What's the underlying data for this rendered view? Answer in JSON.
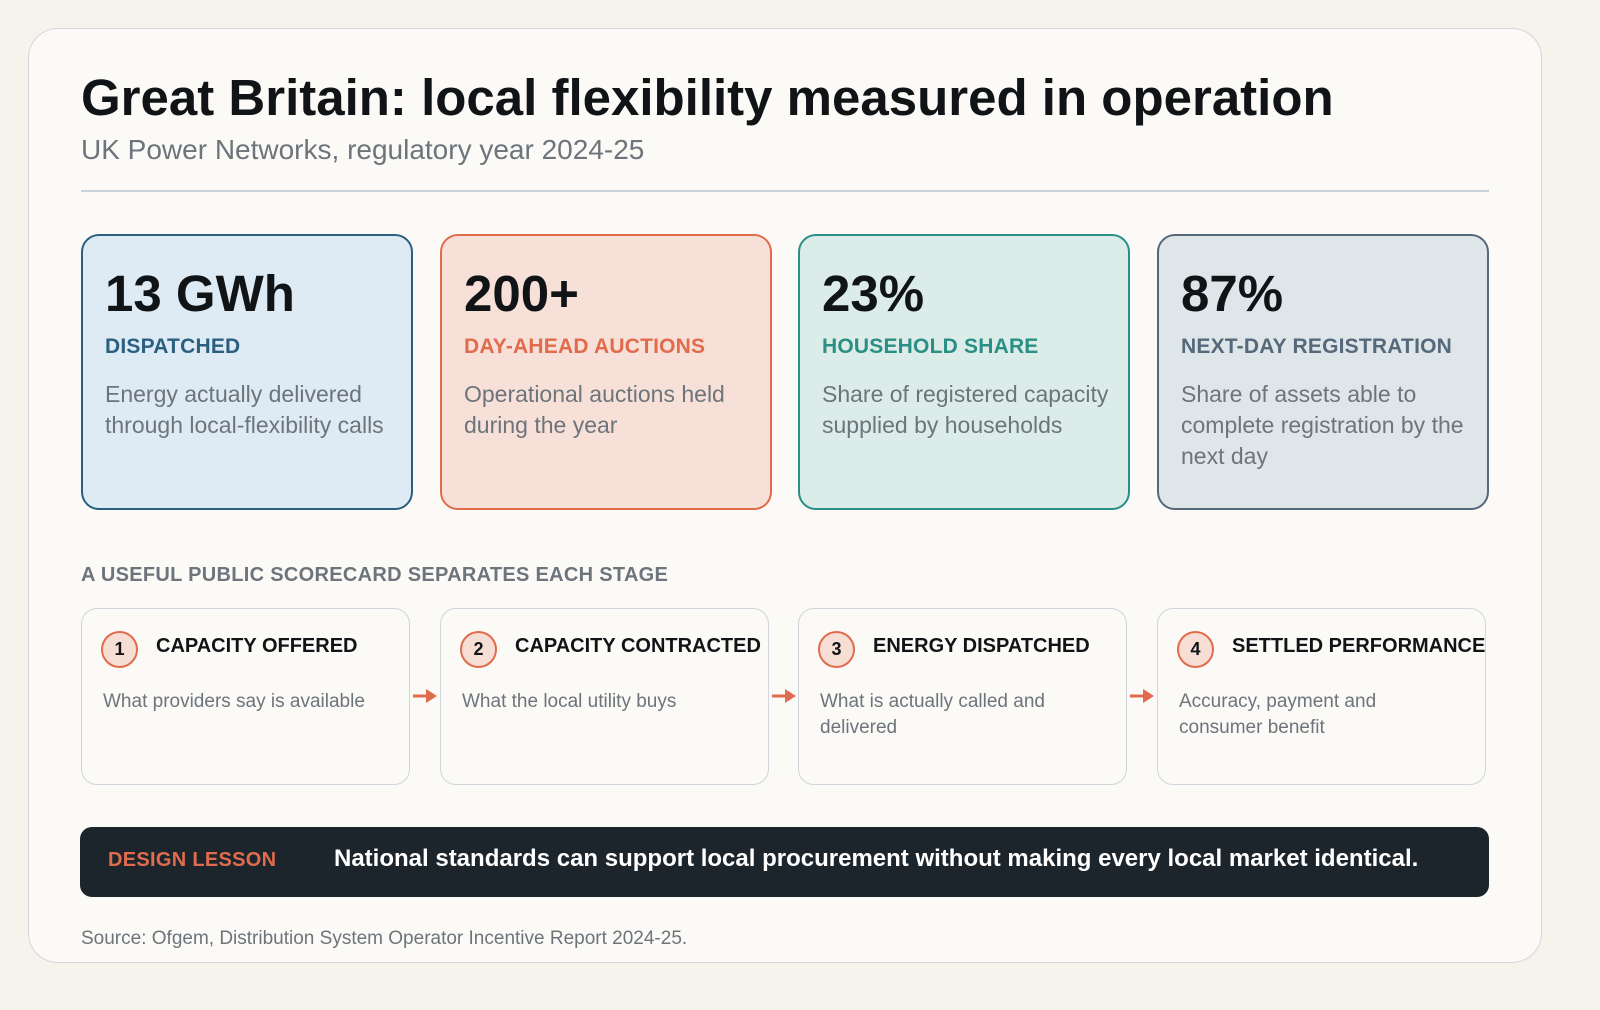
{
  "header": {
    "title": "Great Britain: local flexibility measured in operation",
    "subtitle": "UK Power Networks, regulatory year 2024-25"
  },
  "kpis": [
    {
      "value": "13 GWh",
      "label": "DISPATCHED",
      "desc": "Energy actually delivered through local-flexibility calls",
      "accent": "#2b5f80",
      "bg": "#deebf4"
    },
    {
      "value": "200+",
      "label": "DAY-AHEAD AUCTIONS",
      "desc": "Operational auctions held during the year",
      "accent": "#e16b4d",
      "bg": "#f7e0d8"
    },
    {
      "value": "23%",
      "label": "HOUSEHOLD SHARE",
      "desc": "Share of registered capacity supplied by households",
      "accent": "#2a8f84",
      "bg": "#dcede9"
    },
    {
      "value": "87%",
      "label": "NEXT-DAY REGISTRATION",
      "desc": "Share of assets able to complete registration by the next day",
      "accent": "#56697a",
      "bg": "#dfe6ea"
    }
  ],
  "scorecard": {
    "heading": "A USEFUL PUBLIC SCORECARD SEPARATES EACH STAGE",
    "stages": [
      {
        "num": "1",
        "title": "CAPACITY OFFERED",
        "desc": "What providers say is available"
      },
      {
        "num": "2",
        "title": "CAPACITY CONTRACTED",
        "desc": "What the local utility buys"
      },
      {
        "num": "3",
        "title": "ENERGY DISPATCHED",
        "desc": "What is actually called and delivered"
      },
      {
        "num": "4",
        "title": "SETTLED PERFORMANCE",
        "desc": "Accuracy, payment and consumer benefit"
      }
    ]
  },
  "banner": {
    "tag": "DESIGN LESSON",
    "message": "National standards can support local procurement without making every local market identical."
  },
  "footer": {
    "source": "Source: Ofgem, Distribution System Operator Incentive Report 2024-25."
  },
  "colors": {
    "accent_orange": "#e16b4d",
    "banner_bg": "#1b252b"
  }
}
